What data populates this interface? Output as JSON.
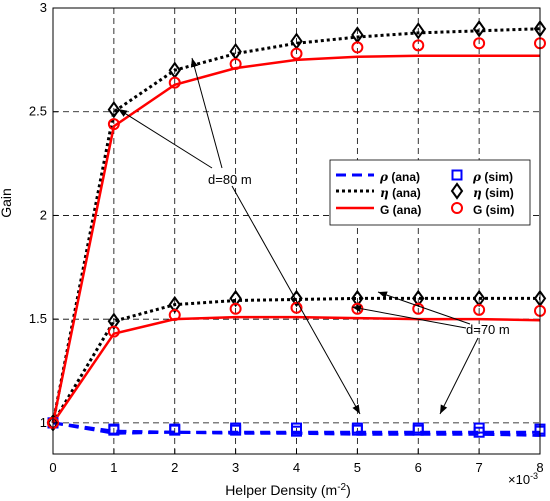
{
  "chart_data": {
    "type": "line",
    "title": "",
    "xlabel": "Helper Density (m",
    "xlabel_sup": "-2",
    "xlabel_tail": ")",
    "ylabel": "Gain",
    "x_multiplier": "×10",
    "x_multiplier_sup": "-3",
    "xlim": [
      0,
      8
    ],
    "ylim": [
      0.85,
      3
    ],
    "xticks": [
      "0",
      "1",
      "2",
      "3",
      "4",
      "5",
      "6",
      "7",
      "8"
    ],
    "yticks": [
      "1",
      "1.5",
      "2",
      "2.5",
      "3"
    ],
    "grid": true,
    "legend_position": "right",
    "legend": [
      {
        "symbol": "ρ",
        "suffix": " (ana)"
      },
      {
        "symbol": "ρ",
        "suffix": " (sim)"
      },
      {
        "symbol": "η",
        "suffix": " (ana)"
      },
      {
        "symbol": "η",
        "suffix": " (sim)"
      },
      {
        "symbol": "",
        "suffix": "G (ana)"
      },
      {
        "symbol": "",
        "suffix": "G (sim)"
      }
    ],
    "annotations": [
      "d=80 m",
      "d=70 m"
    ],
    "x": [
      0,
      1,
      2,
      3,
      4,
      5,
      6,
      7,
      8
    ],
    "series": [
      {
        "key": "rho_ana_80",
        "kind": "ana",
        "style": "rho",
        "values": [
          1.0,
          0.95,
          0.955,
          0.955,
          0.955,
          0.955,
          0.955,
          0.955,
          0.955
        ]
      },
      {
        "key": "rho_ana_70",
        "kind": "ana",
        "style": "rho",
        "values": [
          1.0,
          0.96,
          0.955,
          0.95,
          0.95,
          0.945,
          0.945,
          0.945,
          0.94
        ]
      },
      {
        "key": "rho_sim_80",
        "kind": "sim",
        "style": "rho",
        "values": [
          1.0,
          0.97,
          0.97,
          0.975,
          0.975,
          0.975,
          0.975,
          0.975,
          0.97
        ]
      },
      {
        "key": "rho_sim_70",
        "kind": "sim",
        "style": "rho",
        "values": [
          1.0,
          0.965,
          0.965,
          0.965,
          0.96,
          0.965,
          0.965,
          0.955,
          0.96
        ]
      },
      {
        "key": "eta_ana_80",
        "kind": "ana",
        "style": "eta",
        "values": [
          1.0,
          2.5,
          2.7,
          2.78,
          2.83,
          2.86,
          2.88,
          2.89,
          2.9
        ]
      },
      {
        "key": "eta_sim_80",
        "kind": "sim",
        "style": "eta",
        "values": [
          1.0,
          2.51,
          2.7,
          2.79,
          2.84,
          2.87,
          2.89,
          2.9,
          2.9
        ]
      },
      {
        "key": "eta_ana_70",
        "kind": "ana",
        "style": "eta",
        "values": [
          1.0,
          1.49,
          1.57,
          1.59,
          1.595,
          1.6,
          1.6,
          1.6,
          1.6
        ]
      },
      {
        "key": "eta_sim_70",
        "kind": "sim",
        "style": "eta",
        "values": [
          1.0,
          1.49,
          1.57,
          1.6,
          1.6,
          1.6,
          1.6,
          1.6,
          1.6
        ]
      },
      {
        "key": "G_ana_80",
        "kind": "ana",
        "style": "G",
        "values": [
          1.0,
          2.43,
          2.63,
          2.71,
          2.75,
          2.765,
          2.77,
          2.77,
          2.77
        ]
      },
      {
        "key": "G_sim_80",
        "kind": "sim",
        "style": "G",
        "values": [
          1.0,
          2.44,
          2.64,
          2.73,
          2.78,
          2.81,
          2.82,
          2.83,
          2.83
        ]
      },
      {
        "key": "G_ana_70",
        "kind": "ana",
        "style": "G",
        "values": [
          1.0,
          1.43,
          1.5,
          1.51,
          1.51,
          1.505,
          1.5,
          1.5,
          1.495
        ]
      },
      {
        "key": "G_sim_70",
        "kind": "sim",
        "style": "G",
        "values": [
          1.0,
          1.44,
          1.52,
          1.55,
          1.555,
          1.55,
          1.55,
          1.545,
          1.54
        ]
      }
    ],
    "colors": {
      "rho": "#0000ff",
      "eta": "#000000",
      "G": "#ff0000",
      "grid": "#000000",
      "axes": "#000000"
    }
  }
}
